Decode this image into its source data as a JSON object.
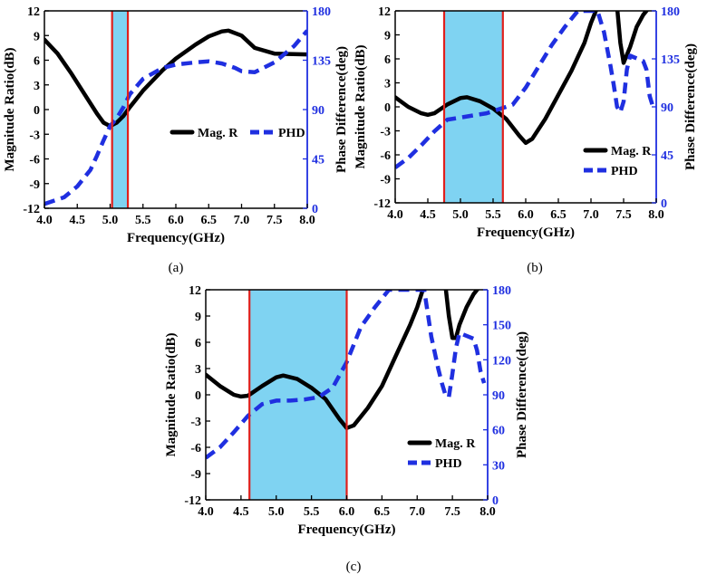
{
  "colors": {
    "mag": "#000000",
    "phd": "#1f2fe0",
    "band_fill": "#7fd3f2",
    "band_edge": "#e0201c",
    "right_axis": "#1f2fe0"
  },
  "chart_data": [
    {
      "type": "line",
      "panel_label": "(a)",
      "xlabel": "Frequency(GHz)",
      "ylabel": "Magnitude Ratio(dB)",
      "y2label": "Phase Difference(deg)",
      "xlim": [
        4.0,
        8.0
      ],
      "ylim": [
        -12,
        12
      ],
      "y2lim": [
        0,
        180
      ],
      "xticks": [
        "4.0",
        "4.5",
        "5.0",
        "5.5",
        "6.0",
        "6.5",
        "7.0",
        "7.5",
        "8.0"
      ],
      "yticks": [
        "-12",
        "-9",
        "-6",
        "-3",
        "0",
        "3",
        "6",
        "9",
        "12"
      ],
      "y2ticks": [
        "0",
        "45",
        "90",
        "135",
        "180"
      ],
      "band": [
        5.03,
        5.27
      ],
      "legend": [
        "Mag. R",
        "PHD"
      ],
      "series": [
        {
          "name": "Mag. R",
          "axis": "left",
          "x": [
            4.0,
            4.2,
            4.4,
            4.6,
            4.8,
            4.9,
            5.0,
            5.1,
            5.2,
            5.3,
            5.5,
            5.8,
            6.0,
            6.3,
            6.5,
            6.7,
            6.8,
            7.0,
            7.2,
            7.5,
            8.0
          ],
          "y": [
            8.5,
            6.8,
            4.5,
            2.0,
            -0.5,
            -1.6,
            -2.0,
            -1.6,
            -0.8,
            0.3,
            2.3,
            4.8,
            6.2,
            7.9,
            8.9,
            9.5,
            9.6,
            9.0,
            7.5,
            6.8,
            6.7
          ]
        },
        {
          "name": "PHD",
          "axis": "right",
          "x": [
            4.0,
            4.3,
            4.5,
            4.7,
            4.8,
            4.9,
            5.0,
            5.1,
            5.2,
            5.3,
            5.5,
            5.8,
            6.0,
            6.3,
            6.5,
            6.7,
            6.9,
            7.0,
            7.2,
            7.5,
            7.8,
            8.0
          ],
          "y": [
            4,
            10,
            20,
            35,
            48,
            62,
            75,
            82,
            92,
            104,
            118,
            128,
            131,
            133,
            134,
            132,
            128,
            125,
            124,
            133,
            148,
            162
          ]
        }
      ]
    },
    {
      "type": "line",
      "panel_label": "(b)",
      "xlabel": "Frequency(GHz)",
      "ylabel": "Magnitude Ratio(dB)",
      "y2label": "Phase Difference(deg)",
      "xlim": [
        4.0,
        8.0
      ],
      "ylim": [
        -12,
        12
      ],
      "y2lim": [
        0,
        180
      ],
      "xticks": [
        "4.0",
        "4.5",
        "5.0",
        "5.5",
        "6.0",
        "6.5",
        "7.0",
        "7.5",
        "8.0"
      ],
      "yticks": [
        "-12",
        "-9",
        "-6",
        "-3",
        "0",
        "3",
        "6",
        "9",
        "12"
      ],
      "y2ticks": [
        "0",
        "45",
        "90",
        "135",
        "180"
      ],
      "band": [
        4.75,
        5.65
      ],
      "legend": [
        "Mag. R",
        "PHD"
      ],
      "series": [
        {
          "name": "Mag. R",
          "axis": "left",
          "x": [
            4.0,
            4.2,
            4.4,
            4.5,
            4.6,
            4.8,
            5.0,
            5.1,
            5.3,
            5.5,
            5.7,
            5.9,
            6.0,
            6.1,
            6.3,
            6.5,
            6.7,
            6.9,
            7.0,
            7.1,
            7.2,
            7.3,
            7.4,
            7.45,
            7.5,
            7.6,
            7.7,
            7.8,
            7.9
          ],
          "y": [
            1.2,
            0.0,
            -0.8,
            -1.0,
            -0.8,
            0.3,
            1.1,
            1.2,
            0.7,
            -0.2,
            -1.5,
            -3.6,
            -4.5,
            -4.0,
            -1.5,
            1.5,
            4.5,
            8.0,
            10.5,
            12.5,
            12.5,
            12.5,
            12.5,
            8.0,
            5.5,
            7.5,
            10.0,
            11.5,
            12.5
          ]
        },
        {
          "name": "PHD",
          "axis": "right",
          "x": [
            4.0,
            4.2,
            4.4,
            4.6,
            4.8,
            5.0,
            5.2,
            5.4,
            5.6,
            5.8,
            6.0,
            6.2,
            6.4,
            6.6,
            6.8,
            7.0,
            7.1,
            7.2,
            7.3,
            7.35,
            7.4,
            7.45,
            7.5,
            7.55,
            7.6,
            7.8,
            7.85,
            7.9,
            7.95
          ],
          "y": [
            33,
            42,
            54,
            67,
            78,
            80,
            82,
            84,
            88,
            92,
            108,
            128,
            148,
            165,
            180,
            180,
            180,
            160,
            128,
            110,
            90,
            85,
            95,
            125,
            138,
            133,
            125,
            100,
            90
          ]
        }
      ]
    },
    {
      "type": "line",
      "panel_label": "(c)",
      "xlabel": "Frequency(GHz)",
      "ylabel": "Magnitude Ratio(dB)",
      "y2label": "Phase Difference(deg)",
      "xlim": [
        4.0,
        8.0
      ],
      "ylim": [
        -12,
        12
      ],
      "y2lim": [
        0,
        180
      ],
      "xticks": [
        "4.0",
        "4.5",
        "5.0",
        "5.5",
        "6.0",
        "6.5",
        "7.0",
        "7.5",
        "8.0"
      ],
      "yticks": [
        "-12",
        "-9",
        "-6",
        "-3",
        "0",
        "3",
        "6",
        "9",
        "12"
      ],
      "y2ticks": [
        "0",
        "30",
        "60",
        "90",
        "120",
        "150",
        "180"
      ],
      "band": [
        4.62,
        6.0
      ],
      "legend": [
        "Mag. R",
        "PHD"
      ],
      "series": [
        {
          "name": "Mag. R",
          "axis": "left",
          "x": [
            4.0,
            4.2,
            4.4,
            4.5,
            4.6,
            4.8,
            5.0,
            5.1,
            5.3,
            5.5,
            5.7,
            5.9,
            6.0,
            6.1,
            6.3,
            6.5,
            6.7,
            6.9,
            7.0,
            7.1,
            7.3,
            7.4,
            7.45,
            7.5,
            7.55,
            7.6,
            7.7,
            7.8,
            7.9
          ],
          "y": [
            2.3,
            1.0,
            0.0,
            -0.2,
            -0.1,
            1.0,
            2.0,
            2.2,
            1.8,
            0.8,
            -0.5,
            -2.8,
            -3.8,
            -3.5,
            -1.5,
            1.0,
            4.5,
            8.0,
            10.0,
            12.5,
            12.5,
            12.5,
            9.0,
            6.5,
            6.5,
            8.0,
            10.0,
            11.5,
            12.5
          ]
        },
        {
          "name": "PHD",
          "axis": "right",
          "x": [
            4.0,
            4.2,
            4.4,
            4.6,
            4.8,
            5.0,
            5.2,
            5.4,
            5.6,
            5.8,
            6.0,
            6.2,
            6.4,
            6.6,
            6.7,
            7.0,
            7.1,
            7.2,
            7.3,
            7.35,
            7.4,
            7.45,
            7.5,
            7.55,
            7.6,
            7.8,
            7.85,
            7.9,
            7.95
          ],
          "y": [
            36,
            45,
            58,
            72,
            82,
            85,
            85,
            86,
            88,
            96,
            118,
            148,
            165,
            180,
            180,
            180,
            180,
            140,
            112,
            100,
            90,
            88,
            108,
            130,
            143,
            138,
            128,
            110,
            100
          ]
        }
      ]
    }
  ]
}
